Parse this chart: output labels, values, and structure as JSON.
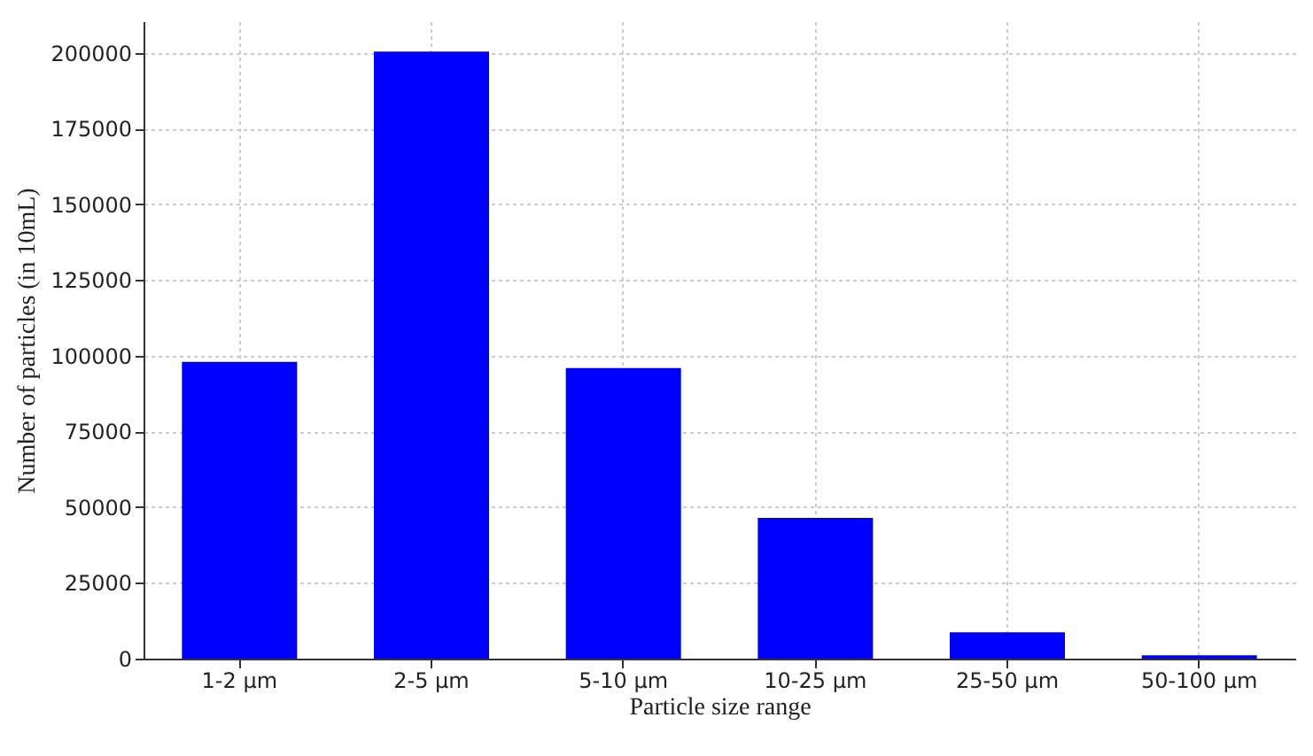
{
  "chart_data": {
    "type": "bar",
    "xlabel": "Particle size range",
    "ylabel": "Number of particles (in 10mL)",
    "categories": [
      "1-2 µm",
      "2-5 µm",
      "5-10 µm",
      "10-25 µm",
      "25-50 µm",
      "50-100 µm"
    ],
    "values": [
      98000,
      200500,
      96000,
      46500,
      8700,
      1100
    ],
    "color": "#0000ff",
    "ylim": [
      0,
      210500
    ],
    "yticks": [
      0,
      25000,
      50000,
      75000,
      100000,
      125000,
      150000,
      175000,
      200000
    ],
    "grid": true
  }
}
